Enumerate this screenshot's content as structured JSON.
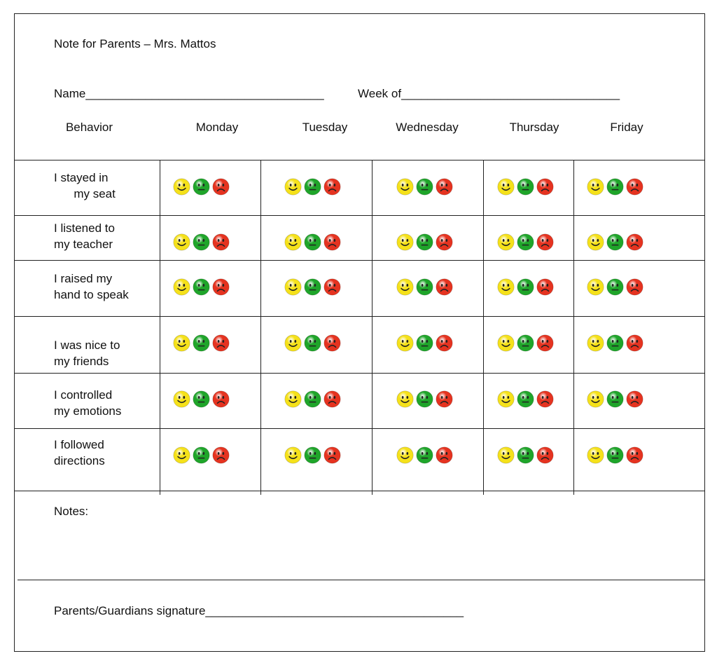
{
  "title": "Note for Parents – Mrs. Mattos",
  "fields": {
    "name_label": "Name",
    "name_line": "____________________________________",
    "week_label": "Week of",
    "week_line": "_________________________________"
  },
  "table": {
    "behavior_header": "Behavior",
    "days": [
      "Monday",
      "Tuesday",
      "Wednesday",
      "Thursday",
      "Friday"
    ],
    "behaviors": [
      "I stayed in\n      my seat",
      "I listened to\nmy teacher",
      "I raised my\nhand to speak",
      "I was nice to\nmy friends",
      "I controlled\nmy emotions",
      "I followed\ndirections"
    ],
    "face_icons": [
      "happy-yellow-face-icon",
      "neutral-green-face-icon",
      "sad-red-face-icon"
    ],
    "colors": {
      "happy": "#f5e11a",
      "neutral": "#1fa52a",
      "sad": "#e53320"
    }
  },
  "notes_label": "Notes:",
  "signature": {
    "label": "Parents/Guardians signature",
    "line": "_______________________________________"
  }
}
